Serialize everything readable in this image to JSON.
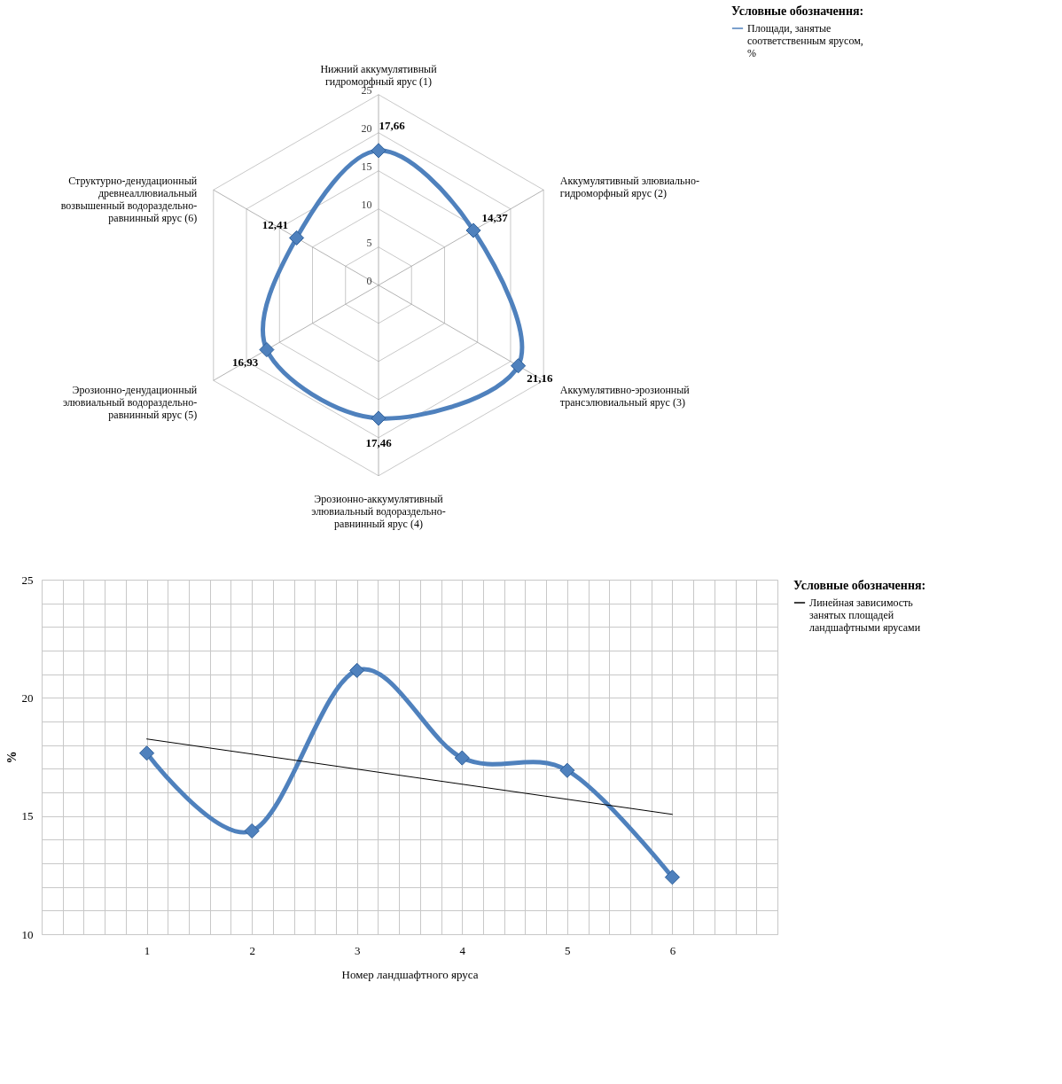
{
  "chart_data": [
    {
      "type": "radar",
      "categories": [
        "Нижний аккумулятивный гидроморфный ярус (1)",
        "Аккумулятивный элювиально-гидроморфный ярус (2)",
        "Аккумулятивно-эрозионный трансэлювиальный ярус (3)",
        "Эрозионно-аккумулятивный элювиальный водораздельно-равнинный ярус (4)",
        "Эрозионно-денудационный элювиальный водораздельно-равнинный ярус (5)",
        "Структурно-денудационный древнеаллювиальный возвышенный водораздельно-равнинный ярус (6)"
      ],
      "series": [
        {
          "name": "Площади, занятые соответственным ярусом, %",
          "color": "#4f81bd",
          "values": [
            17.66,
            14.37,
            21.16,
            17.46,
            16.93,
            12.41
          ],
          "value_labels": [
            "17,66",
            "14,37",
            "21,16",
            "17,46",
            "16,93",
            "12,41"
          ]
        }
      ],
      "ylim": [
        0,
        25
      ],
      "yticks": [
        0,
        5,
        10,
        15,
        20,
        25
      ],
      "legend_title": "Условные обозначення:",
      "legend": "right",
      "marker": "diamond",
      "grid": true
    },
    {
      "type": "line",
      "xlabel": "Номер ландшафтного яруса",
      "ylabel": "%",
      "series": [
        {
          "color": "#4f81bd",
          "x": [
            1,
            2,
            3,
            4,
            5,
            6
          ],
          "values": [
            17.66,
            14.37,
            21.16,
            17.46,
            16.93,
            12.41
          ]
        },
        {
          "name": "Линейная зависимость занятых площадей ландшафтными ярусами",
          "color": "#000000",
          "marker": "none",
          "x": [
            1,
            6
          ],
          "values": [
            18.26,
            15.07
          ]
        }
      ],
      "xlim": [
        0,
        7
      ],
      "xticks": [
        {
          "value": 0,
          "label": null
        },
        {
          "value": 0.2,
          "label": null
        },
        {
          "value": 0.4,
          "label": null
        },
        {
          "value": 0.6,
          "label": null
        },
        {
          "value": 0.8,
          "label": null
        },
        1,
        {
          "value": 1.2,
          "label": null
        },
        {
          "value": 1.4,
          "label": null
        },
        {
          "value": 1.6,
          "label": null
        },
        {
          "value": 1.8,
          "label": null
        },
        2,
        {
          "value": 2.2,
          "label": null
        },
        {
          "value": 2.4,
          "label": null
        },
        {
          "value": 2.6,
          "label": null
        },
        {
          "value": 2.8,
          "label": null
        },
        3,
        {
          "value": 3.2,
          "label": null
        },
        {
          "value": 3.4,
          "label": null
        },
        {
          "value": 3.6,
          "label": null
        },
        {
          "value": 3.8,
          "label": null
        },
        4,
        {
          "value": 4.2,
          "label": null
        },
        {
          "value": 4.4,
          "label": null
        },
        {
          "value": 4.6,
          "label": null
        },
        {
          "value": 4.8,
          "label": null
        },
        5,
        {
          "value": 5.2,
          "label": null
        },
        {
          "value": 5.4,
          "label": null
        },
        {
          "value": 5.6,
          "label": null
        },
        {
          "value": 5.8,
          "label": null
        },
        6,
        {
          "value": 6.2,
          "label": null
        },
        {
          "value": 6.4,
          "label": null
        },
        {
          "value": 6.6,
          "label": null
        },
        {
          "value": 6.8,
          "label": null
        },
        {
          "value": 7,
          "label": null
        }
      ],
      "ylim": [
        10,
        25
      ],
      "yticks": [
        10,
        {
          "value": 11,
          "label": null
        },
        {
          "value": 12,
          "label": null
        },
        {
          "value": 13,
          "label": null
        },
        {
          "value": 14,
          "label": null
        },
        15,
        {
          "value": 16,
          "label": null
        },
        {
          "value": 17,
          "label": null
        },
        {
          "value": 18,
          "label": null
        },
        {
          "value": 19,
          "label": null
        },
        20,
        {
          "value": 21,
          "label": null
        },
        {
          "value": 22,
          "label": null
        },
        {
          "value": 23,
          "label": null
        },
        {
          "value": 24,
          "label": null
        },
        25
      ],
      "legend_title": "Условные обозначення:",
      "legend": "right",
      "marker": "diamond",
      "line_style": "solid",
      "grid": true
    }
  ]
}
